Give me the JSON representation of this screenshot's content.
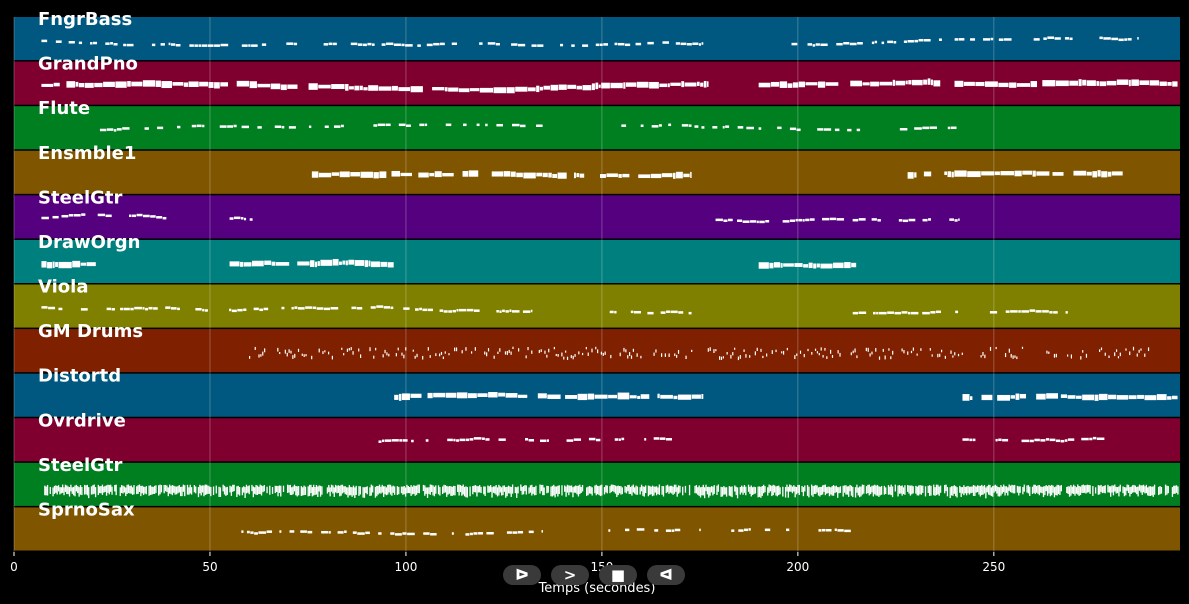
{
  "chart_data": {
    "type": "piano-roll",
    "xlabel": "Temps (secondes)",
    "xlim": [
      0,
      297.5
    ],
    "xticks": [
      0,
      50,
      100,
      150,
      200,
      250
    ],
    "grid": true,
    "tracks": [
      {
        "name": "FngrBass",
        "color": "#00577f",
        "segments": [
          [
            7,
            176
          ],
          [
            190,
            287
          ]
        ],
        "density": 0.55
      },
      {
        "name": "GrandPno",
        "color": "#7f002f",
        "segments": [
          [
            7,
            177
          ],
          [
            190,
            297
          ]
        ],
        "density": 0.95
      },
      {
        "name": "Flute",
        "color": "#007f20",
        "segments": [
          [
            19,
            135
          ],
          [
            151,
            216
          ],
          [
            225,
            248
          ]
        ],
        "density": 0.45
      },
      {
        "name": "Ensmble1",
        "color": "#7f5500",
        "segments": [
          [
            76,
            173
          ],
          [
            228,
            283
          ]
        ],
        "density": 0.9
      },
      {
        "name": "SteelGtr",
        "color": "#55007f",
        "segments": [
          [
            7,
            39
          ],
          [
            55,
            61
          ],
          [
            179,
            241
          ]
        ],
        "density": 0.6
      },
      {
        "name": "DrawOrgn",
        "color": "#007f7f",
        "segments": [
          [
            7,
            21
          ],
          [
            55,
            97
          ],
          [
            190,
            215
          ]
        ],
        "density": 0.9
      },
      {
        "name": "Viola",
        "color": "#7f7f00",
        "segments": [
          [
            7,
            132
          ],
          [
            152,
            173
          ],
          [
            214,
            241
          ],
          [
            249,
            269
          ]
        ],
        "density": 0.7
      },
      {
        "name": "GM Drums",
        "color": "#7f2000",
        "segments": [
          [
            59,
            173
          ],
          [
            177,
            290
          ]
        ],
        "density": 0.5,
        "drums": true
      },
      {
        "name": "Distortd",
        "color": "#00577f",
        "segments": [
          [
            97,
            176
          ],
          [
            242,
            297
          ]
        ],
        "density": 0.9
      },
      {
        "name": "Ovrdrive",
        "color": "#7f002f",
        "segments": [
          [
            93,
            169
          ],
          [
            242,
            283
          ]
        ],
        "density": 0.6
      },
      {
        "name": "SteelGtr",
        "color": "#007f20",
        "segments": [
          [
            7,
            297
          ]
        ],
        "density": 0.85,
        "strum": true
      },
      {
        "name": "SprnoSax",
        "color": "#7f5500",
        "segments": [
          [
            58,
            135
          ],
          [
            151,
            175
          ],
          [
            183,
            216
          ]
        ],
        "density": 0.5
      }
    ]
  },
  "toolbar": {
    "buttons": [
      {
        "name": "play-forward",
        "glyph": "ᐅ"
      },
      {
        "name": "next",
        "glyph": ">"
      },
      {
        "name": "stop",
        "glyph": "■"
      },
      {
        "name": "play-backward",
        "glyph": "ᐊ"
      }
    ]
  }
}
